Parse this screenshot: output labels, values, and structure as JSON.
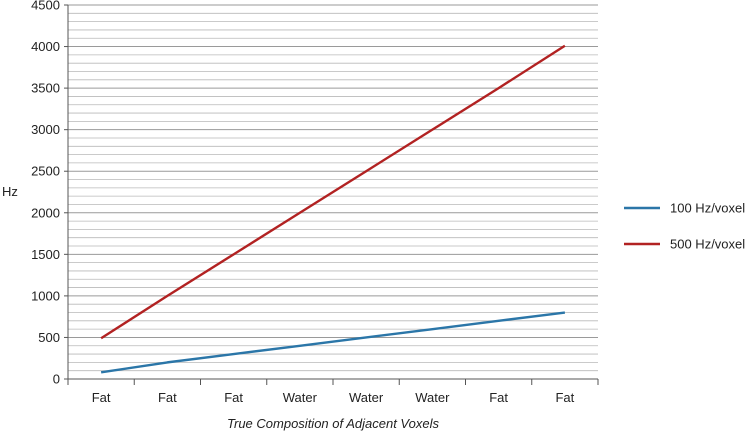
{
  "chart_data": {
    "type": "line",
    "title": "",
    "xlabel": "True Composition of Adjacent Voxels",
    "ylabel": "Hz",
    "categories": [
      "Fat",
      "Fat",
      "Fat",
      "Water",
      "Water",
      "Water",
      "Fat",
      "Fat"
    ],
    "ylim": [
      0,
      4500
    ],
    "ytick_step": 500,
    "minor_grid_step": 100,
    "grid": true,
    "legend_position": "right",
    "series": [
      {
        "name": "100 Hz/voxel",
        "color": "#2b76a8",
        "values": [
          80,
          200,
          300,
          400,
          500,
          600,
          700,
          800
        ]
      },
      {
        "name": "500 Hz/voxel",
        "color": "#b22222",
        "values": [
          490,
          1000,
          1500,
          2000,
          2500,
          3000,
          3500,
          4010
        ]
      }
    ]
  }
}
